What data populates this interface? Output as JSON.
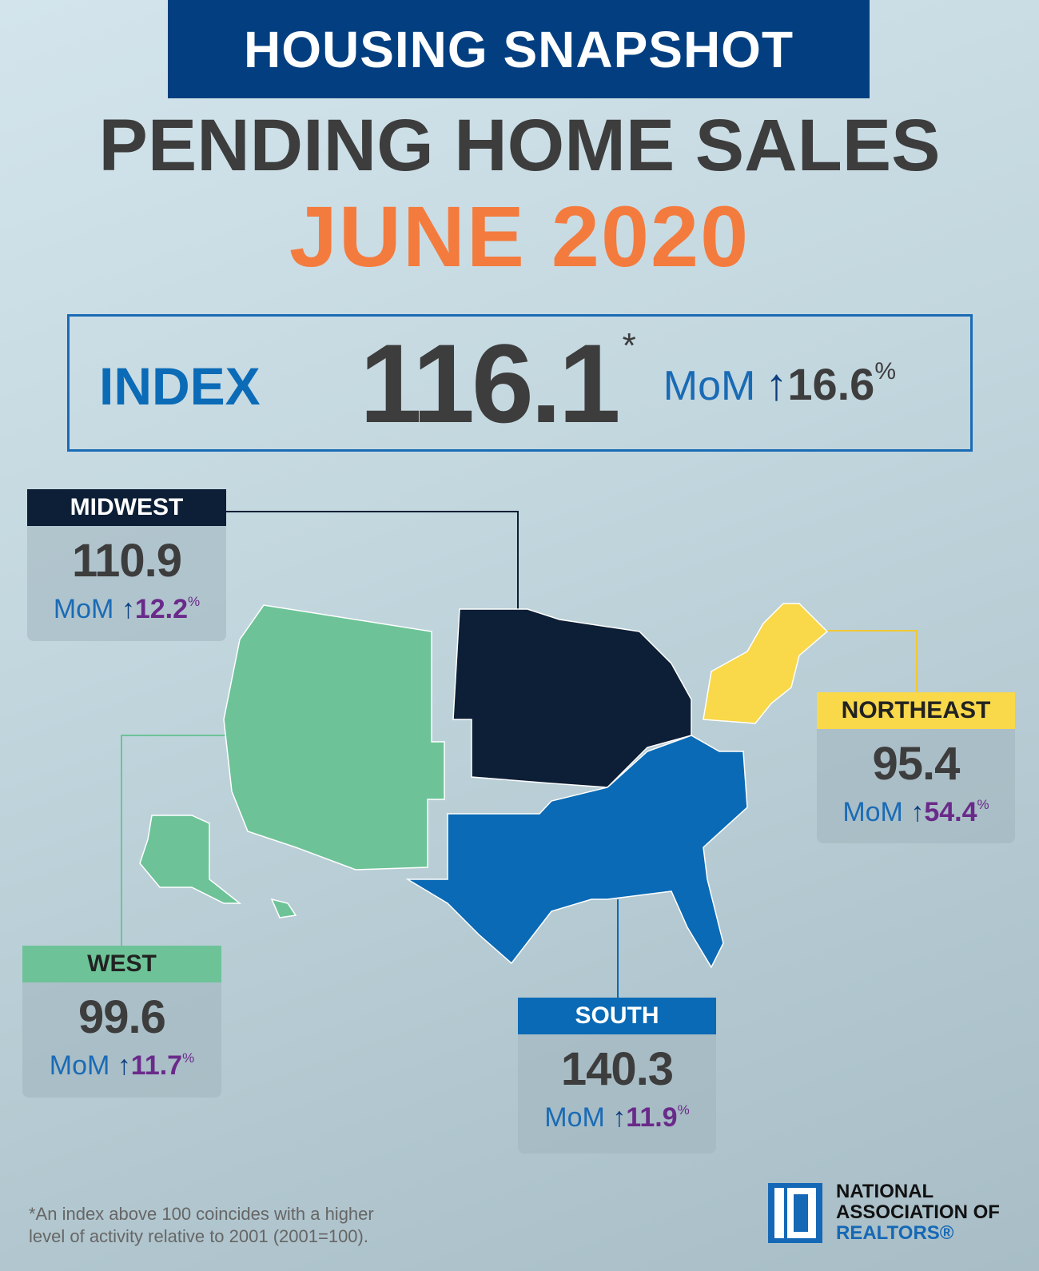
{
  "banner": "HOUSING SNAPSHOT",
  "title": "PENDING HOME SALES",
  "period": "JUNE 2020",
  "index": {
    "label": "INDEX",
    "value": "116.1",
    "asterisk": "*",
    "mom_label": "MoM",
    "direction": "up",
    "change": "16.6",
    "pct": "%"
  },
  "regions": [
    {
      "name": "MIDWEST",
      "value": "110.9",
      "mom_label": "MoM",
      "direction": "up",
      "change": "12.2",
      "pct": "%",
      "color": "#0d1f36"
    },
    {
      "name": "NORTHEAST",
      "value": "95.4",
      "mom_label": "MoM",
      "direction": "up",
      "change": "54.4",
      "pct": "%",
      "color": "#f9d84a"
    },
    {
      "name": "WEST",
      "value": "99.6",
      "mom_label": "MoM",
      "direction": "up",
      "change": "11.7",
      "pct": "%",
      "color": "#6dc397"
    },
    {
      "name": "SOUTH",
      "value": "140.3",
      "mom_label": "MoM",
      "direction": "up",
      "change": "11.9",
      "pct": "%",
      "color": "#0a6ab5"
    }
  ],
  "footnote": {
    "line1": "*An index above 100 coincides with a higher",
    "line2": "level of activity relative to 2001 (2001=100)."
  },
  "logo": {
    "line1": "NATIONAL",
    "line2": "ASSOCIATION OF",
    "line3": "REALTORS®"
  }
}
